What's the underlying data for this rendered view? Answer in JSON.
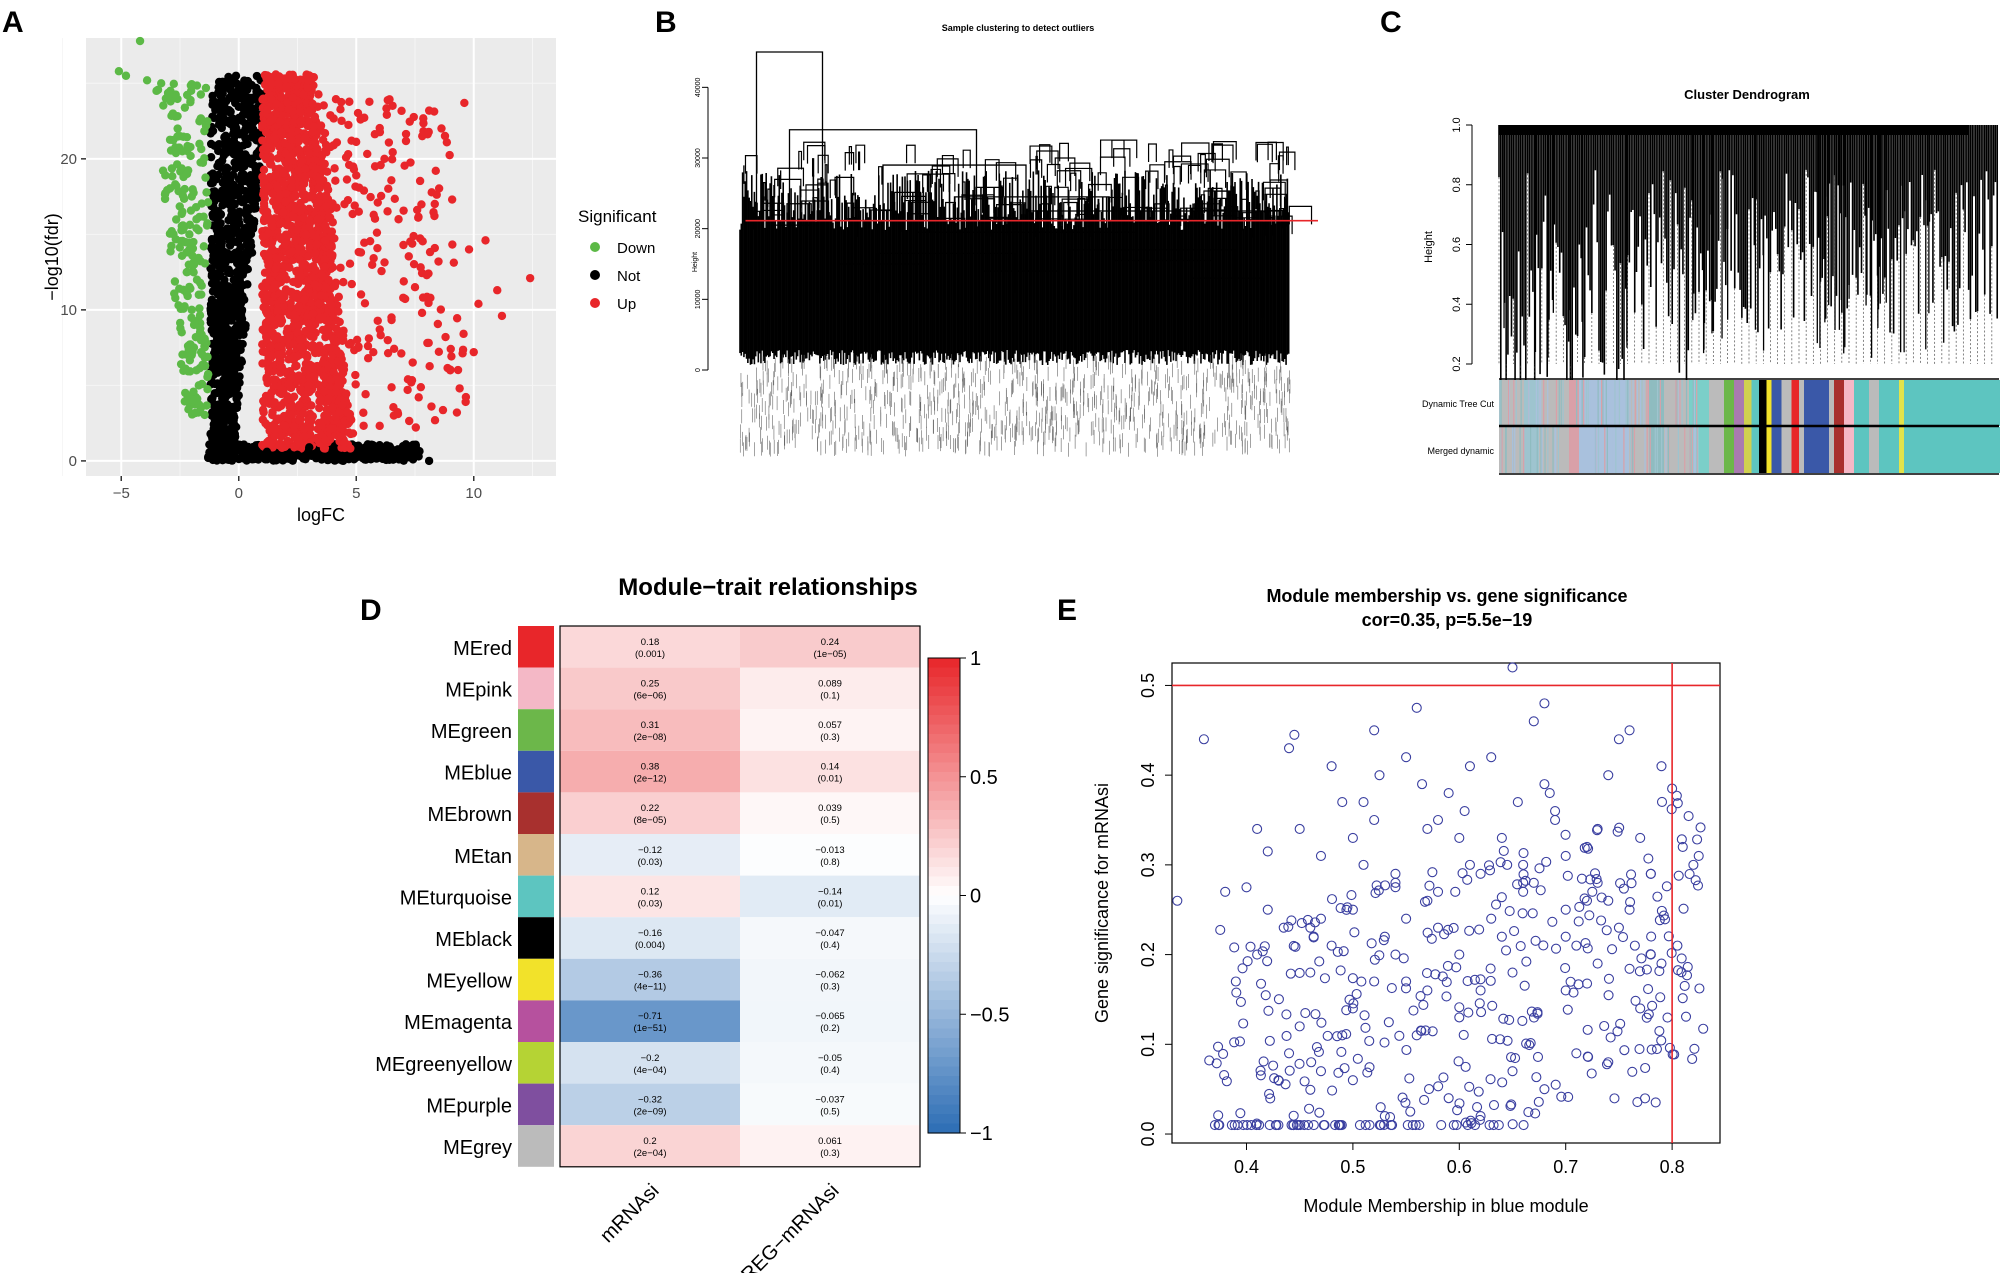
{
  "panel_labels": {
    "a": "A",
    "b": "B",
    "c": "C",
    "d": "D",
    "e": "E"
  },
  "chart_data": [
    {
      "panel": "A",
      "type": "scatter",
      "title": "",
      "xlabel": "logFC",
      "ylabel": "−log10(fdr)",
      "xlim": [
        -6.5,
        13.5
      ],
      "ylim": [
        -1,
        28
      ],
      "xticks": [
        {
          "v": -5,
          "label": "−5"
        },
        {
          "v": 0,
          "label": "0"
        },
        {
          "v": 5,
          "label": "5"
        },
        {
          "v": 10,
          "label": "10"
        }
      ],
      "yticks": [
        {
          "v": 0,
          "label": "0"
        },
        {
          "v": 10,
          "label": "10"
        },
        {
          "v": 20,
          "label": "20"
        }
      ],
      "grid": true,
      "legend": {
        "title": "Significant",
        "position": "right",
        "entries": [
          {
            "label": "Down",
            "color": "#5cb946"
          },
          {
            "label": "Not",
            "color": "#000000"
          },
          {
            "label": "Up",
            "color": "#e8262a"
          }
        ]
      },
      "series": [
        {
          "name": "Down",
          "color": "#5cb946",
          "x": [
            -4.2,
            -5.1,
            -4.8,
            -3.9,
            -3.5,
            -3.1,
            -2.8,
            -2.6,
            -2.4,
            -2.2,
            -2.0,
            -1.8,
            -3.3,
            -2.9,
            -2.5,
            -2.3,
            -2.1,
            -1.9,
            -1.7,
            -2.7,
            -2.2,
            -2.0,
            -1.6,
            -2.4,
            -1.9,
            -1.8,
            -2.1,
            -1.7,
            -2.0,
            -1.9
          ],
          "y": [
            27.8,
            25.8,
            25.5,
            25.2,
            24.5,
            24.0,
            23.0,
            22.0,
            20.5,
            19.0,
            17.5,
            16.0,
            25.0,
            23.8,
            21.5,
            18.0,
            15.0,
            13.0,
            11.0,
            22.8,
            12.5,
            10.0,
            8.0,
            16.5,
            9.0,
            6.0,
            14.0,
            5.0,
            7.0,
            4.0
          ]
        },
        {
          "name": "Up",
          "color": "#e8262a",
          "x": [
            9.6,
            12.4,
            11.0,
            10.2,
            10.5,
            9.8,
            8.5,
            8.0,
            7.5,
            7.0,
            6.5,
            6.0,
            5.5,
            5.0,
            4.5,
            4.0,
            9.0,
            8.8,
            7.8,
            7.2,
            6.8,
            6.2,
            5.8,
            5.2,
            4.8,
            11.2,
            10.0,
            9.4,
            8.2,
            6.6
          ],
          "y": [
            23.7,
            12.1,
            11.3,
            10.4,
            14.6,
            14.0,
            13.2,
            12.3,
            11.5,
            10.8,
            9.5,
            8.7,
            7.6,
            18.9,
            17.0,
            15.8,
            6.0,
            8.2,
            9.8,
            5.4,
            16.0,
            20.0,
            19.5,
            13.8,
            21.2,
            9.6,
            7.2,
            4.8,
            3.6,
            3.0
          ]
        },
        {
          "name": "Not",
          "color": "#000000",
          "x": [
            8.1,
            -0.2,
            0.3,
            -0.5,
            0.6,
            -0.8,
            0.9,
            -1.0,
            1.2,
            2.5,
            3.0,
            4.0,
            5.2,
            -1.3,
            -0.9
          ],
          "y": [
            0.0,
            0.5,
            0.2,
            1.0,
            0.8,
            2.0,
            0.3,
            3.5,
            0.6,
            0.4,
            0.9,
            0.7,
            0.5,
            0.2,
            0.6
          ]
        }
      ]
    },
    {
      "panel": "B",
      "type": "dendrogram",
      "title": "Sample clustering to detect outliers",
      "ylabel": "Height",
      "ylim": [
        0,
        45000
      ],
      "yticks": [
        {
          "v": 0,
          "label": "0"
        },
        {
          "v": 10000,
          "label": "10000"
        },
        {
          "v": 20000,
          "label": "20000"
        },
        {
          "v": 30000,
          "label": "30000"
        },
        {
          "v": 40000,
          "label": "40000"
        }
      ],
      "cut_height": 20000,
      "cut_color": "#e8262a",
      "merges": [
        {
          "x1": 0.03,
          "x2": 0.15,
          "h": 45000
        },
        {
          "x1": 0.09,
          "x2": 0.43,
          "h": 34000
        },
        {
          "x1": 0.26,
          "x2": 0.52,
          "h": 29000
        },
        {
          "x1": 0.39,
          "x2": 0.67,
          "h": 24500
        },
        {
          "x1": 0.06,
          "x2": 0.13,
          "h": 20500
        },
        {
          "x1": 0.52,
          "x2": 0.98,
          "h": 22500
        },
        {
          "x1": 0.32,
          "x2": 0.72,
          "h": 19500
        },
        {
          "x1": 0.25,
          "x2": 0.5,
          "h": 16500
        },
        {
          "x1": 0.6,
          "x2": 0.9,
          "h": 17000
        },
        {
          "x1": 0.18,
          "x2": 0.34,
          "h": 15000
        },
        {
          "x1": 0.44,
          "x2": 0.58,
          "h": 14000
        },
        {
          "x1": 0.68,
          "x2": 0.86,
          "h": 15500
        },
        {
          "x1": 0.82,
          "x2": 0.95,
          "h": 13000
        }
      ]
    },
    {
      "panel": "C",
      "type": "dendrogram",
      "title": "Cluster Dendrogram",
      "ylabel": "Height",
      "ylim": [
        0.2,
        1.0
      ],
      "yticks": [
        {
          "v": 0.2,
          "label": "0.2"
        },
        {
          "v": 0.4,
          "label": "0.4"
        },
        {
          "v": 0.6,
          "label": "0.6"
        },
        {
          "v": 0.8,
          "label": "0.8"
        },
        {
          "v": 1.0,
          "label": "1.0"
        }
      ],
      "color_rows": [
        "Dynamic Tree Cut",
        "Merged dynamic"
      ],
      "module_colors": [
        {
          "c": "#bbbbbb",
          "w": 0.05
        },
        {
          "c": "#9ec4cf",
          "w": 0.03
        },
        {
          "c": "#bbbbbb",
          "w": 0.06
        },
        {
          "c": "#d9a0a8",
          "w": 0.02
        },
        {
          "c": "#a9c1dd",
          "w": 0.1
        },
        {
          "c": "#bbbbbb",
          "w": 0.04
        },
        {
          "c": "#8fbcc0",
          "w": 0.03
        },
        {
          "c": "#bbbbbb",
          "w": 0.05
        },
        {
          "c": "#7bcfc9",
          "w": 0.04
        },
        {
          "c": "#bbbbbb",
          "w": 0.03
        },
        {
          "c": "#6cb74a",
          "w": 0.02
        },
        {
          "c": "#a97bb0",
          "w": 0.02
        },
        {
          "c": "#d0d050",
          "w": 0.015
        },
        {
          "c": "#5dc5c0",
          "w": 0.015
        },
        {
          "c": "#000000",
          "w": 0.015
        },
        {
          "c": "#f2e22a",
          "w": 0.01
        },
        {
          "c": "#3a58a8",
          "w": 0.02
        },
        {
          "c": "#bbbbbb",
          "w": 0.02
        },
        {
          "c": "#e8262a",
          "w": 0.015
        },
        {
          "c": "#bbbbbb",
          "w": 0.01
        },
        {
          "c": "#3a58a8",
          "w": 0.05
        },
        {
          "c": "#bbbbbb",
          "w": 0.01
        },
        {
          "c": "#a8302e",
          "w": 0.02
        },
        {
          "c": "#f4b8c6",
          "w": 0.02
        },
        {
          "c": "#5dc5c0",
          "w": 0.03
        },
        {
          "c": "#bbbbbb",
          "w": 0.02
        },
        {
          "c": "#5dc5c0",
          "w": 0.04
        },
        {
          "c": "#e3e34a",
          "w": 0.01
        },
        {
          "c": "#5dc5c0",
          "w": 0.21
        }
      ]
    },
    {
      "panel": "D",
      "type": "heatmap",
      "title": "Module−trait relationships",
      "columns": [
        "mRNAsi",
        "EREG−mRNAsi"
      ],
      "rows": [
        {
          "name": "MEred",
          "color": "#e8262a",
          "cells": [
            {
              "r": 0.18,
              "label": "0.18",
              "p": "(0.001)"
            },
            {
              "r": 0.24,
              "label": "0.24",
              "p": "(1e−05)"
            }
          ]
        },
        {
          "name": "MEpink",
          "color": "#f4b8c6",
          "cells": [
            {
              "r": 0.25,
              "label": "0.25",
              "p": "(6e−06)"
            },
            {
              "r": 0.089,
              "label": "0.089",
              "p": "(0.1)"
            }
          ]
        },
        {
          "name": "MEgreen",
          "color": "#6cb74a",
          "cells": [
            {
              "r": 0.31,
              "label": "0.31",
              "p": "(2e−08)"
            },
            {
              "r": 0.057,
              "label": "0.057",
              "p": "(0.3)"
            }
          ]
        },
        {
          "name": "MEblue",
          "color": "#3a58a8",
          "cells": [
            {
              "r": 0.38,
              "label": "0.38",
              "p": "(2e−12)"
            },
            {
              "r": 0.14,
              "label": "0.14",
              "p": "(0.01)"
            }
          ]
        },
        {
          "name": "MEbrown",
          "color": "#a8302e",
          "cells": [
            {
              "r": 0.22,
              "label": "0.22",
              "p": "(8e−05)"
            },
            {
              "r": 0.039,
              "label": "0.039",
              "p": "(0.5)"
            }
          ]
        },
        {
          "name": "MEtan",
          "color": "#d7b68a",
          "cells": [
            {
              "r": -0.12,
              "label": "−0.12",
              "p": "(0.03)"
            },
            {
              "r": -0.013,
              "label": "−0.013",
              "p": "(0.8)"
            }
          ]
        },
        {
          "name": "MEturquoise",
          "color": "#5dc5c0",
          "cells": [
            {
              "r": 0.12,
              "label": "0.12",
              "p": "(0.03)"
            },
            {
              "r": -0.14,
              "label": "−0.14",
              "p": "(0.01)"
            }
          ]
        },
        {
          "name": "MEblack",
          "color": "#000000",
          "cells": [
            {
              "r": -0.16,
              "label": "−0.16",
              "p": "(0.004)"
            },
            {
              "r": -0.047,
              "label": "−0.047",
              "p": "(0.4)"
            }
          ]
        },
        {
          "name": "MEyellow",
          "color": "#f2e22a",
          "cells": [
            {
              "r": -0.36,
              "label": "−0.36",
              "p": "(4e−11)"
            },
            {
              "r": -0.062,
              "label": "−0.062",
              "p": "(0.3)"
            }
          ]
        },
        {
          "name": "MEmagenta",
          "color": "#b6519e",
          "cells": [
            {
              "r": -0.71,
              "label": "−0.71",
              "p": "(1e−51)"
            },
            {
              "r": -0.065,
              "label": "−0.065",
              "p": "(0.2)"
            }
          ]
        },
        {
          "name": "MEgreenyellow",
          "color": "#b5d334",
          "cells": [
            {
              "r": -0.2,
              "label": "−0.2",
              "p": "(4e−04)"
            },
            {
              "r": -0.05,
              "label": "−0.05",
              "p": "(0.4)"
            }
          ]
        },
        {
          "name": "MEpurple",
          "color": "#7f4f9f",
          "cells": [
            {
              "r": -0.32,
              "label": "−0.32",
              "p": "(2e−09)"
            },
            {
              "r": -0.037,
              "label": "−0.037",
              "p": "(0.5)"
            }
          ]
        },
        {
          "name": "MEgrey",
          "color": "#bbbbbb",
          "cells": [
            {
              "r": 0.2,
              "label": "0.2",
              "p": "(2e−04)"
            },
            {
              "r": 0.061,
              "label": "0.061",
              "p": "(0.3)"
            }
          ]
        }
      ],
      "colorbar": {
        "range": [
          -1,
          1
        ],
        "ticks": [
          {
            "v": 1,
            "label": "1"
          },
          {
            "v": 0.5,
            "label": "0.5"
          },
          {
            "v": 0,
            "label": "0"
          },
          {
            "v": -0.5,
            "label": "−0.5"
          },
          {
            "v": -1,
            "label": "−1"
          }
        ],
        "low": "#2c6db4",
        "mid": "#ffffff",
        "high": "#e8262a"
      }
    },
    {
      "panel": "E",
      "type": "scatter",
      "title": "Module membership vs. gene significance",
      "subtitle": "cor=0.35, p=5.5e−19",
      "xlabel": "Module Membership in blue module",
      "ylabel": "Gene significance for  mRNAsi",
      "xlim": [
        0.33,
        0.845
      ],
      "ylim": [
        -0.01,
        0.525
      ],
      "xticks": [
        {
          "v": 0.4,
          "label": "0.4"
        },
        {
          "v": 0.5,
          "label": "0.5"
        },
        {
          "v": 0.6,
          "label": "0.6"
        },
        {
          "v": 0.7,
          "label": "0.7"
        },
        {
          "v": 0.8,
          "label": "0.8"
        }
      ],
      "yticks": [
        {
          "v": 0.0,
          "label": "0.0"
        },
        {
          "v": 0.1,
          "label": "0.1"
        },
        {
          "v": 0.2,
          "label": "0.2"
        },
        {
          "v": 0.3,
          "label": "0.3"
        },
        {
          "v": 0.4,
          "label": "0.4"
        },
        {
          "v": 0.5,
          "label": "0.5"
        }
      ],
      "hline": 0.5,
      "vline": 0.8,
      "point_color": "#3a3fa0",
      "line_color": "#e8262a",
      "points": {
        "x": [
          0.335,
          0.36,
          0.365,
          0.38,
          0.4,
          0.41,
          0.42,
          0.43,
          0.435,
          0.44,
          0.445,
          0.45,
          0.46,
          0.47,
          0.48,
          0.49,
          0.5,
          0.51,
          0.52,
          0.53,
          0.54,
          0.55,
          0.56,
          0.57,
          0.58,
          0.59,
          0.6,
          0.61,
          0.62,
          0.63,
          0.64,
          0.65,
          0.655,
          0.66,
          0.67,
          0.68,
          0.69,
          0.7,
          0.71,
          0.72,
          0.73,
          0.74,
          0.75,
          0.76,
          0.77,
          0.78,
          0.79,
          0.8,
          0.805,
          0.81,
          0.82,
          0.825,
          0.44,
          0.47,
          0.5,
          0.53,
          0.56,
          0.59,
          0.62,
          0.65,
          0.68,
          0.71,
          0.74,
          0.77,
          0.46,
          0.49,
          0.52,
          0.55,
          0.58,
          0.61,
          0.64,
          0.67,
          0.7,
          0.73,
          0.76,
          0.79,
          0.48,
          0.51,
          0.54,
          0.57,
          0.6,
          0.63,
          0.66,
          0.69,
          0.72,
          0.75,
          0.78,
          0.45,
          0.5,
          0.55,
          0.6,
          0.65,
          0.7,
          0.525,
          0.565,
          0.605,
          0.645,
          0.685,
          0.725,
          0.765,
          0.42,
          0.43,
          0.5,
          0.52,
          0.57,
          0.68,
          0.73,
          0.39,
          0.41,
          0.47,
          0.54,
          0.58,
          0.62,
          0.66,
          0.7,
          0.74,
          0.78
        ],
        "y": [
          0.26,
          0.44,
          0.082,
          0.27,
          0.275,
          0.34,
          0.315,
          0.01,
          0.23,
          0.43,
          0.445,
          0.34,
          0.18,
          0.24,
          0.41,
          0.37,
          0.25,
          0.3,
          0.45,
          0.22,
          0.2,
          0.42,
          0.475,
          0.16,
          0.35,
          0.38,
          0.2,
          0.41,
          0.29,
          0.42,
          0.33,
          0.52,
          0.37,
          0.3,
          0.46,
          0.48,
          0.35,
          0.25,
          0.21,
          0.26,
          0.19,
          0.4,
          0.44,
          0.45,
          0.33,
          0.2,
          0.41,
          0.385,
          0.21,
          0.32,
          0.3,
          0.31,
          0.09,
          0.31,
          0.06,
          0.02,
          0.11,
          0.04,
          0.02,
          0.07,
          0.05,
          0.09,
          0.08,
          0.14,
          0.23,
          0.11,
          0.17,
          0.24,
          0.27,
          0.3,
          0.22,
          0.28,
          0.31,
          0.34,
          0.25,
          0.19,
          0.21,
          0.37,
          0.29,
          0.26,
          0.33,
          0.24,
          0.27,
          0.36,
          0.32,
          0.23,
          0.29,
          0.12,
          0.14,
          0.17,
          0.13,
          0.18,
          0.16,
          0.4,
          0.39,
          0.36,
          0.3,
          0.38,
          0.27,
          0.21,
          0.25,
          0.06,
          0.33,
          0.35,
          0.34,
          0.39,
          0.28,
          0.17,
          0.2,
          0.07,
          0.28,
          0.23,
          0.16,
          0.28,
          0.22,
          0.26,
          0.29
        ]
      }
    }
  ]
}
